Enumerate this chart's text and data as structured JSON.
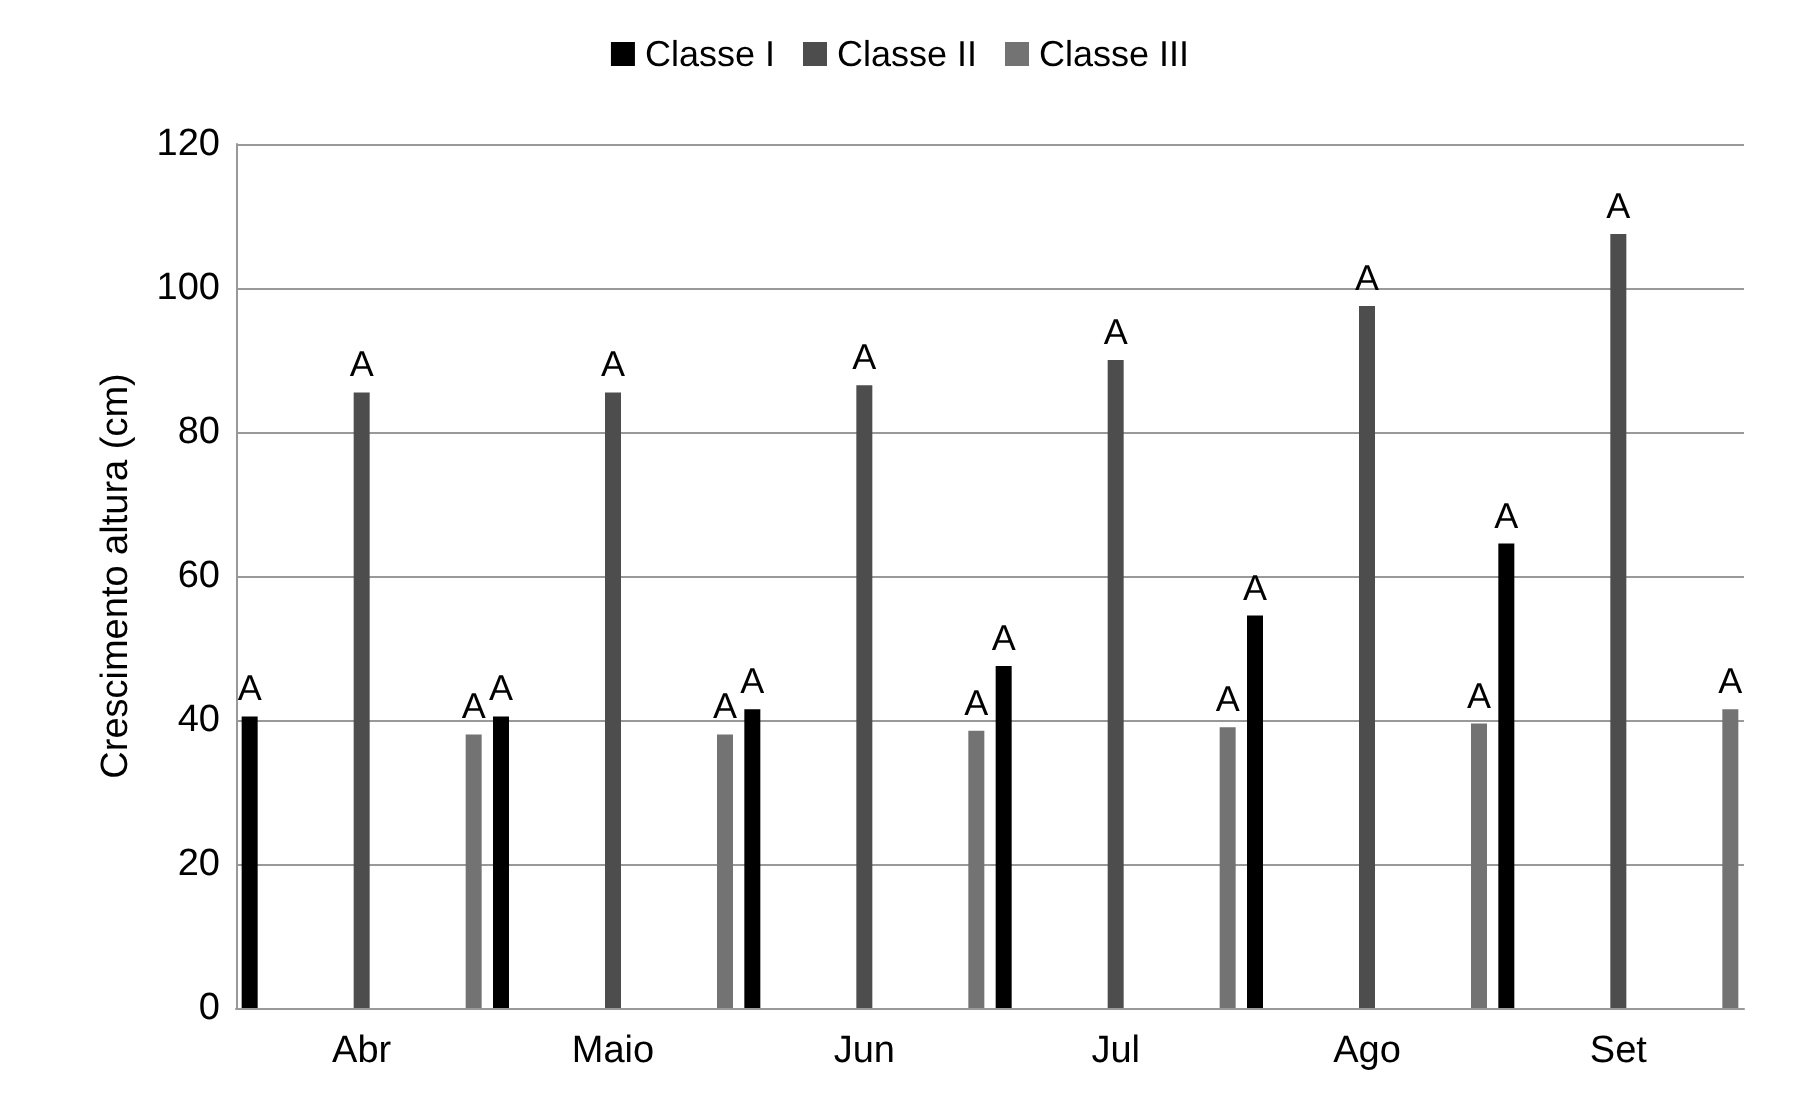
{
  "chart_data": {
    "type": "bar",
    "ylabel": "Crescimento altura (cm)",
    "categories": [
      "Abr",
      "Maio",
      "Jun",
      "Jul",
      "Ago",
      "Set"
    ],
    "series": [
      {
        "name": "Classe I",
        "color": "#000000",
        "values": [
          40.5,
          40.5,
          41.5,
          47.5,
          54.5,
          64.5
        ],
        "value_labels": [
          "A",
          "A",
          "A",
          "A",
          "A",
          "A"
        ]
      },
      {
        "name": "Classe II",
        "color": "#4d4d4d",
        "values": [
          85.5,
          85.5,
          86.5,
          90,
          97.5,
          107.5
        ],
        "value_labels": [
          "A",
          "A",
          "A",
          "A",
          "A",
          "A"
        ]
      },
      {
        "name": "Classe III",
        "color": "#737373",
        "values": [
          38,
          38,
          38.5,
          39,
          39.5,
          41.5
        ],
        "value_labels": [
          "A",
          "A",
          "A",
          "A",
          "A",
          "A"
        ]
      }
    ],
    "ylim": [
      0,
      120
    ],
    "yticks": [
      0,
      20,
      40,
      60,
      80,
      100,
      120
    ],
    "grid": "y",
    "legend": "top"
  }
}
